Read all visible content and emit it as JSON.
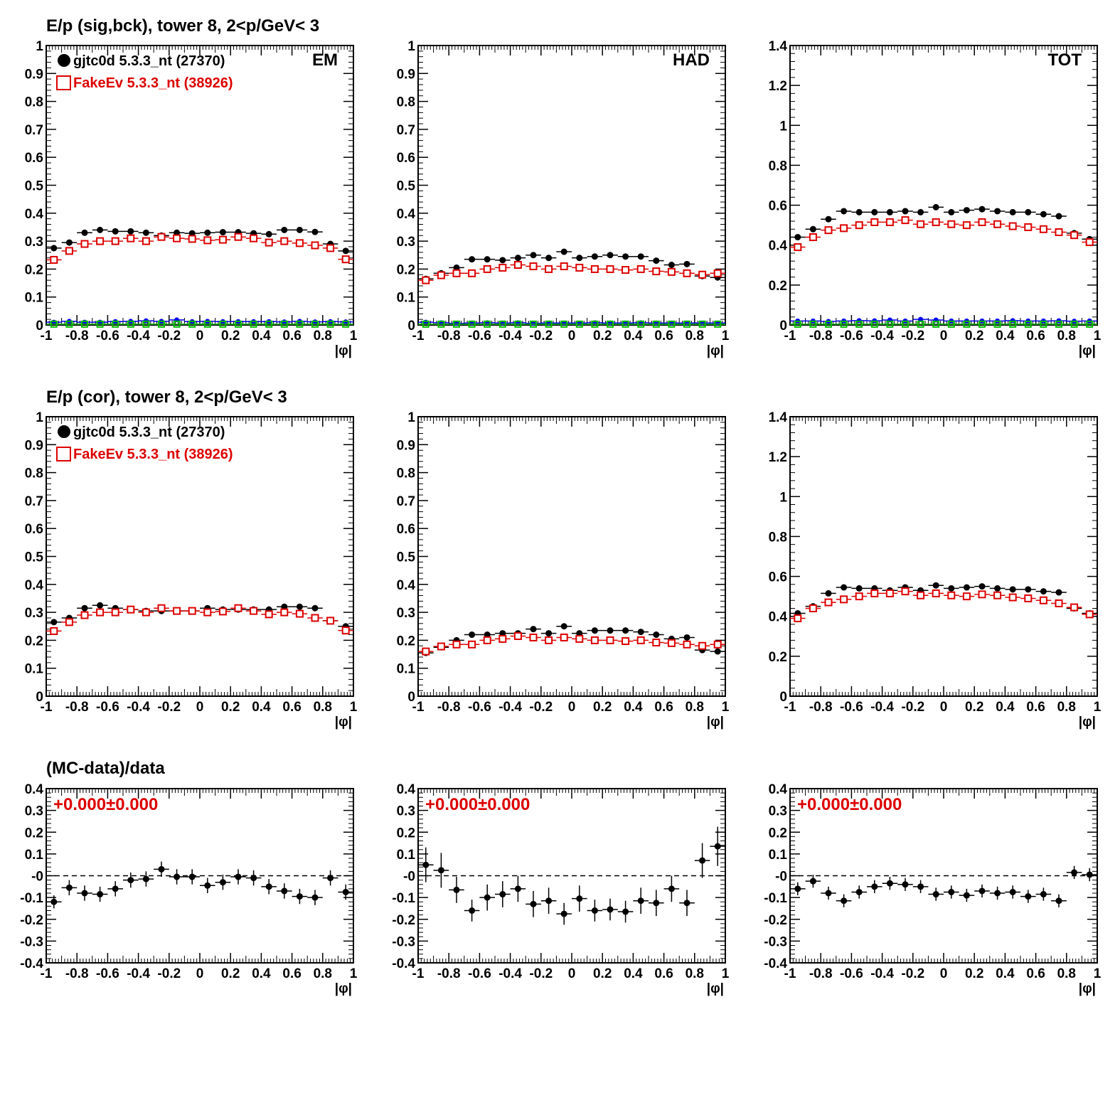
{
  "rows": [
    {
      "title": "E/p (sig,bck), tower 8,  2<p/GeV< 3"
    },
    {
      "title": "E/p (cor), tower 8,  2<p/GeV< 3"
    },
    {
      "title": "(MC-data)/data"
    }
  ],
  "legend": [
    {
      "label": "gjtc0d 5.3.3_nt (27370)",
      "color": "#000000",
      "marker": "filled-circle"
    },
    {
      "label": "FakeEv 5.3.3_nt (38926)",
      "color": "#dd0000",
      "marker": "open-square"
    }
  ],
  "colors": {
    "data": "#000000",
    "mc": "#dd0000",
    "bck_data": "#0000ee",
    "bck_mc": "#00bb00",
    "ratio_text": "#dd0000"
  },
  "chart_data": [
    {
      "id": "r1c1",
      "type": "scatter",
      "xlabel": "|φ|",
      "corner_label": "EM",
      "show_legend": true,
      "xlim": [
        -1,
        1
      ],
      "ylim": [
        0,
        1
      ],
      "xticks": [
        "-1",
        "-0.8",
        "-0.6",
        "-0.4",
        "-0.2",
        "0",
        "0.2",
        "0.4",
        "0.6",
        "0.8",
        "1"
      ],
      "yticks": [
        "0",
        "0.1",
        "0.2",
        "0.3",
        "0.4",
        "0.5",
        "0.6",
        "0.7",
        "0.8",
        "0.9",
        "1"
      ],
      "x": [
        -0.95,
        -0.85,
        -0.75,
        -0.65,
        -0.55,
        -0.45,
        -0.35,
        -0.25,
        -0.15,
        -0.05,
        0.05,
        0.15,
        0.25,
        0.35,
        0.45,
        0.55,
        0.65,
        0.75,
        0.85,
        0.95
      ],
      "series": [
        {
          "name": "gjtc0d 5.3.3_nt (27370)",
          "values": [
            0.275,
            0.295,
            0.33,
            0.34,
            0.335,
            0.335,
            0.33,
            0.32,
            0.33,
            0.328,
            0.33,
            0.332,
            0.332,
            0.328,
            0.325,
            0.34,
            0.34,
            0.333,
            0.29,
            0.265
          ]
        },
        {
          "name": "FakeEv 5.3.3_nt (38926)",
          "values": [
            0.233,
            0.265,
            0.29,
            0.3,
            0.3,
            0.31,
            0.3,
            0.315,
            0.31,
            0.308,
            0.303,
            0.305,
            0.315,
            0.31,
            0.295,
            0.3,
            0.293,
            0.285,
            0.275,
            0.235
          ]
        },
        {
          "values": [
            0.01,
            0.013,
            0.01,
            0.01,
            0.012,
            0.013,
            0.015,
            0.013,
            0.018,
            0.012,
            0.013,
            0.012,
            0.012,
            0.012,
            0.012,
            0.011,
            0.013,
            0.011,
            0.012,
            0.011
          ]
        },
        {
          "values": [
            0.003,
            0.003,
            0.003,
            0.003,
            0.003,
            0.003,
            0.003,
            0.003,
            0.003,
            0.003,
            0.003,
            0.003,
            0.003,
            0.003,
            0.003,
            0.003,
            0.003,
            0.003,
            0.003,
            0.003
          ]
        }
      ]
    },
    {
      "id": "r1c2",
      "type": "scatter",
      "xlabel": "|φ|",
      "corner_label": "HAD",
      "show_legend": false,
      "xlim": [
        -1,
        1
      ],
      "ylim": [
        0,
        1
      ],
      "xticks": [
        "-1",
        "-0.8",
        "-0.6",
        "-0.4",
        "-0.2",
        "0",
        "0.2",
        "0.4",
        "0.6",
        "0.8",
        "1"
      ],
      "yticks": [
        "0",
        "0.1",
        "0.2",
        "0.3",
        "0.4",
        "0.5",
        "0.6",
        "0.7",
        "0.8",
        "0.9",
        "1"
      ],
      "x": [
        -0.95,
        -0.85,
        -0.75,
        -0.65,
        -0.55,
        -0.45,
        -0.35,
        -0.25,
        -0.15,
        -0.05,
        0.05,
        0.15,
        0.25,
        0.35,
        0.45,
        0.55,
        0.65,
        0.75,
        0.85,
        0.95
      ],
      "series": [
        {
          "name": "gjtc0d 5.3.3_nt (27370)",
          "values": [
            0.165,
            0.185,
            0.205,
            0.235,
            0.235,
            0.232,
            0.24,
            0.25,
            0.24,
            0.262,
            0.24,
            0.245,
            0.25,
            0.245,
            0.245,
            0.23,
            0.215,
            0.218,
            0.175,
            0.17
          ]
        },
        {
          "name": "FakeEv 5.3.3_nt (38926)",
          "values": [
            0.16,
            0.178,
            0.185,
            0.185,
            0.2,
            0.205,
            0.215,
            0.21,
            0.2,
            0.21,
            0.205,
            0.2,
            0.2,
            0.197,
            0.2,
            0.192,
            0.19,
            0.185,
            0.18,
            0.185
          ]
        },
        {
          "values": [
            0.01,
            0.008,
            0.006,
            0.007,
            0.008,
            0.007,
            0.008,
            0.006,
            0.007,
            0.007,
            0.007,
            0.008,
            0.007,
            0.007,
            0.008,
            0.007,
            0.007,
            0.007,
            0.007,
            0.007
          ]
        },
        {
          "values": [
            0.003,
            0.003,
            0.003,
            0.003,
            0.003,
            0.003,
            0.003,
            0.003,
            0.003,
            0.003,
            0.003,
            0.003,
            0.003,
            0.003,
            0.003,
            0.003,
            0.003,
            0.003,
            0.003,
            0.003
          ]
        }
      ]
    },
    {
      "id": "r1c3",
      "type": "scatter",
      "xlabel": "|φ|",
      "corner_label": "TOT",
      "show_legend": false,
      "xlim": [
        -1,
        1
      ],
      "ylim": [
        0,
        1.4
      ],
      "xticks": [
        "-1",
        "-0.8",
        "-0.6",
        "-0.4",
        "-0.2",
        "0",
        "0.2",
        "0.4",
        "0.6",
        "0.8",
        "1"
      ],
      "yticks": [
        "0",
        "0.2",
        "0.4",
        "0.6",
        "0.8",
        "1",
        "1.2",
        "1.4"
      ],
      "x": [
        -0.95,
        -0.85,
        -0.75,
        -0.65,
        -0.55,
        -0.45,
        -0.35,
        -0.25,
        -0.15,
        -0.05,
        0.05,
        0.15,
        0.25,
        0.35,
        0.45,
        0.55,
        0.65,
        0.75,
        0.85,
        0.95
      ],
      "series": [
        {
          "name": "gjtc0d 5.3.3_nt (27370)",
          "values": [
            0.44,
            0.48,
            0.53,
            0.57,
            0.565,
            0.565,
            0.565,
            0.57,
            0.565,
            0.59,
            0.565,
            0.575,
            0.58,
            0.57,
            0.565,
            0.565,
            0.555,
            0.545,
            0.46,
            0.43
          ]
        },
        {
          "name": "FakeEv 5.3.3_nt (38926)",
          "values": [
            0.39,
            0.44,
            0.475,
            0.485,
            0.5,
            0.515,
            0.515,
            0.525,
            0.505,
            0.515,
            0.505,
            0.5,
            0.515,
            0.505,
            0.495,
            0.49,
            0.48,
            0.465,
            0.45,
            0.415
          ]
        },
        {
          "values": [
            0.02,
            0.02,
            0.018,
            0.02,
            0.022,
            0.021,
            0.025,
            0.02,
            0.028,
            0.025,
            0.02,
            0.02,
            0.02,
            0.02,
            0.022,
            0.02,
            0.02,
            0.021,
            0.019,
            0.02
          ]
        },
        {
          "values": [
            0.004,
            0.004,
            0.004,
            0.004,
            0.004,
            0.004,
            0.004,
            0.004,
            0.004,
            0.004,
            0.004,
            0.004,
            0.004,
            0.004,
            0.004,
            0.004,
            0.004,
            0.004,
            0.004,
            0.004
          ]
        }
      ]
    },
    {
      "id": "r2c1",
      "type": "scatter",
      "xlabel": "|φ|",
      "corner_label": "",
      "show_legend": true,
      "xlim": [
        -1,
        1
      ],
      "ylim": [
        0,
        1
      ],
      "xticks": [
        "-1",
        "-0.8",
        "-0.6",
        "-0.4",
        "-0.2",
        "0",
        "0.2",
        "0.4",
        "0.6",
        "0.8",
        "1"
      ],
      "yticks": [
        "0",
        "0.1",
        "0.2",
        "0.3",
        "0.4",
        "0.5",
        "0.6",
        "0.7",
        "0.8",
        "0.9",
        "1"
      ],
      "x": [
        -0.95,
        -0.85,
        -0.75,
        -0.65,
        -0.55,
        -0.45,
        -0.35,
        -0.25,
        -0.15,
        -0.05,
        0.05,
        0.15,
        0.25,
        0.35,
        0.45,
        0.55,
        0.65,
        0.75,
        0.85,
        0.95
      ],
      "series": [
        {
          "name": "gjtc0d 5.3.3_nt (27370)",
          "values": [
            0.265,
            0.28,
            0.315,
            0.325,
            0.315,
            0.31,
            0.305,
            0.305,
            0.305,
            0.305,
            0.315,
            0.31,
            0.31,
            0.31,
            0.31,
            0.32,
            0.32,
            0.315,
            0.27,
            0.25
          ]
        },
        {
          "name": "FakeEv 5.3.3_nt (38926)",
          "values": [
            0.233,
            0.265,
            0.29,
            0.3,
            0.3,
            0.31,
            0.3,
            0.315,
            0.305,
            0.305,
            0.3,
            0.303,
            0.315,
            0.305,
            0.293,
            0.3,
            0.295,
            0.28,
            0.27,
            0.235
          ]
        }
      ]
    },
    {
      "id": "r2c2",
      "type": "scatter",
      "xlabel": "|φ|",
      "corner_label": "",
      "show_legend": false,
      "xlim": [
        -1,
        1
      ],
      "ylim": [
        0,
        1
      ],
      "xticks": [
        "-1",
        "-0.8",
        "-0.6",
        "-0.4",
        "-0.2",
        "0",
        "0.2",
        "0.4",
        "0.6",
        "0.8",
        "1"
      ],
      "yticks": [
        "0",
        "0.1",
        "0.2",
        "0.3",
        "0.4",
        "0.5",
        "0.6",
        "0.7",
        "0.8",
        "0.9",
        "1"
      ],
      "x": [
        -0.95,
        -0.85,
        -0.75,
        -0.65,
        -0.55,
        -0.45,
        -0.35,
        -0.25,
        -0.15,
        -0.05,
        0.05,
        0.15,
        0.25,
        0.35,
        0.45,
        0.55,
        0.65,
        0.75,
        0.85,
        0.95
      ],
      "series": [
        {
          "name": "gjtc0d 5.3.3_nt (27370)",
          "values": [
            0.155,
            0.175,
            0.2,
            0.22,
            0.22,
            0.225,
            0.225,
            0.24,
            0.225,
            0.25,
            0.225,
            0.235,
            0.235,
            0.235,
            0.23,
            0.22,
            0.205,
            0.21,
            0.165,
            0.16
          ]
        },
        {
          "name": "FakeEv 5.3.3_nt (38926)",
          "values": [
            0.16,
            0.178,
            0.185,
            0.185,
            0.2,
            0.205,
            0.215,
            0.21,
            0.2,
            0.21,
            0.205,
            0.2,
            0.2,
            0.197,
            0.2,
            0.192,
            0.19,
            0.185,
            0.18,
            0.185
          ]
        }
      ]
    },
    {
      "id": "r2c3",
      "type": "scatter",
      "xlabel": "|φ|",
      "corner_label": "",
      "show_legend": false,
      "xlim": [
        -1,
        1
      ],
      "ylim": [
        0,
        1.4
      ],
      "xticks": [
        "-1",
        "-0.8",
        "-0.6",
        "-0.4",
        "-0.2",
        "0",
        "0.2",
        "0.4",
        "0.6",
        "0.8",
        "1"
      ],
      "yticks": [
        "0",
        "0.2",
        "0.4",
        "0.6",
        "0.8",
        "1",
        "1.2",
        "1.4"
      ],
      "x": [
        -0.95,
        -0.85,
        -0.75,
        -0.65,
        -0.55,
        -0.45,
        -0.35,
        -0.25,
        -0.15,
        -0.05,
        0.05,
        0.15,
        0.25,
        0.35,
        0.45,
        0.55,
        0.65,
        0.75,
        0.85,
        0.95
      ],
      "series": [
        {
          "name": "gjtc0d 5.3.3_nt (27370)",
          "values": [
            0.415,
            0.45,
            0.515,
            0.545,
            0.54,
            0.54,
            0.53,
            0.545,
            0.53,
            0.555,
            0.54,
            0.545,
            0.55,
            0.54,
            0.535,
            0.535,
            0.525,
            0.52,
            0.44,
            0.415
          ]
        },
        {
          "name": "FakeEv 5.3.3_nt (38926)",
          "values": [
            0.39,
            0.44,
            0.47,
            0.485,
            0.5,
            0.515,
            0.515,
            0.525,
            0.505,
            0.515,
            0.505,
            0.5,
            0.51,
            0.505,
            0.495,
            0.49,
            0.48,
            0.465,
            0.445,
            0.41
          ]
        }
      ]
    },
    {
      "id": "r3c1",
      "type": "scatter",
      "xlabel": "|φ|",
      "ratio_label": "+0.000±0.000",
      "xlim": [
        -1,
        1
      ],
      "ylim": [
        -0.4,
        0.4
      ],
      "xticks": [
        "-1",
        "-0.8",
        "-0.6",
        "-0.4",
        "-0.2",
        "0",
        "0.2",
        "0.4",
        "0.6",
        "0.8",
        "1"
      ],
      "yticks": [
        "-0.4",
        "-0.3",
        "-0.2",
        "-0.1",
        "-0",
        "0.1",
        "0.2",
        "0.3",
        "0.4"
      ],
      "x": [
        -0.95,
        -0.85,
        -0.75,
        -0.65,
        -0.55,
        -0.45,
        -0.35,
        -0.25,
        -0.15,
        -0.05,
        0.05,
        0.15,
        0.25,
        0.35,
        0.45,
        0.55,
        0.65,
        0.75,
        0.85,
        0.95
      ],
      "series": [
        {
          "values": [
            -0.12,
            -0.055,
            -0.08,
            -0.085,
            -0.06,
            -0.02,
            -0.015,
            0.03,
            -0.005,
            -0.005,
            -0.045,
            -0.03,
            -0.005,
            -0.01,
            -0.05,
            -0.07,
            -0.095,
            -0.1,
            -0.01,
            -0.075
          ],
          "errors": [
            0.03,
            0.035,
            0.035,
            0.035,
            0.035,
            0.035,
            0.035,
            0.035,
            0.035,
            0.035,
            0.035,
            0.035,
            0.035,
            0.035,
            0.035,
            0.035,
            0.035,
            0.035,
            0.035,
            0.035
          ]
        }
      ]
    },
    {
      "id": "r3c2",
      "type": "scatter",
      "xlabel": "|φ|",
      "ratio_label": "+0.000±0.000",
      "xlim": [
        -1,
        1
      ],
      "ylim": [
        -0.4,
        0.4
      ],
      "xticks": [
        "-1",
        "-0.8",
        "-0.6",
        "-0.4",
        "-0.2",
        "0",
        "0.2",
        "0.4",
        "0.6",
        "0.8",
        "1"
      ],
      "yticks": [
        "-0.4",
        "-0.3",
        "-0.2",
        "-0.1",
        "-0",
        "0.1",
        "0.2",
        "0.3",
        "0.4"
      ],
      "x": [
        -0.95,
        -0.85,
        -0.75,
        -0.65,
        -0.55,
        -0.45,
        -0.35,
        -0.25,
        -0.15,
        -0.05,
        0.05,
        0.15,
        0.25,
        0.35,
        0.45,
        0.55,
        0.65,
        0.75,
        0.85,
        0.95
      ],
      "series": [
        {
          "values": [
            0.05,
            0.025,
            -0.065,
            -0.16,
            -0.1,
            -0.085,
            -0.06,
            -0.13,
            -0.115,
            -0.175,
            -0.105,
            -0.16,
            -0.155,
            -0.165,
            -0.115,
            -0.125,
            -0.06,
            -0.125,
            0.07,
            0.135
          ],
          "errors": [
            0.08,
            0.08,
            0.06,
            0.05,
            0.06,
            0.06,
            0.06,
            0.06,
            0.06,
            0.05,
            0.06,
            0.05,
            0.05,
            0.05,
            0.06,
            0.06,
            0.06,
            0.06,
            0.08,
            0.09
          ]
        }
      ]
    },
    {
      "id": "r3c3",
      "type": "scatter",
      "xlabel": "|φ|",
      "ratio_label": "+0.000±0.000",
      "xlim": [
        -1,
        1
      ],
      "ylim": [
        -0.4,
        0.4
      ],
      "xticks": [
        "-1",
        "-0.8",
        "-0.6",
        "-0.4",
        "-0.2",
        "0",
        "0.2",
        "0.4",
        "0.6",
        "0.8",
        "1"
      ],
      "yticks": [
        "-0.4",
        "-0.3",
        "-0.2",
        "-0.1",
        "-0",
        "0.1",
        "0.2",
        "0.3",
        "0.4"
      ],
      "x": [
        -0.95,
        -0.85,
        -0.75,
        -0.65,
        -0.55,
        -0.45,
        -0.35,
        -0.25,
        -0.15,
        -0.05,
        0.05,
        0.15,
        0.25,
        0.35,
        0.45,
        0.55,
        0.65,
        0.75,
        0.85,
        0.95
      ],
      "series": [
        {
          "values": [
            -0.06,
            -0.025,
            -0.08,
            -0.115,
            -0.075,
            -0.05,
            -0.035,
            -0.04,
            -0.05,
            -0.085,
            -0.075,
            -0.09,
            -0.07,
            -0.08,
            -0.075,
            -0.095,
            -0.085,
            -0.115,
            0.015,
            0.005
          ],
          "errors": [
            0.03,
            0.03,
            0.03,
            0.03,
            0.03,
            0.03,
            0.03,
            0.03,
            0.03,
            0.03,
            0.03,
            0.03,
            0.03,
            0.03,
            0.03,
            0.03,
            0.03,
            0.03,
            0.03,
            0.03
          ]
        }
      ]
    }
  ]
}
